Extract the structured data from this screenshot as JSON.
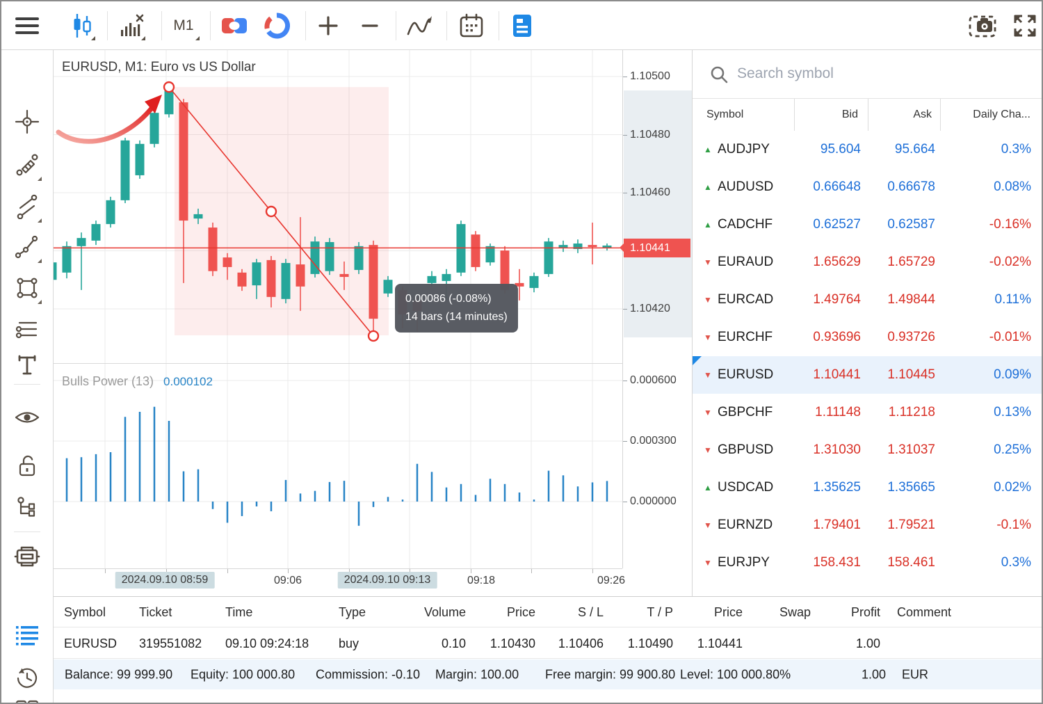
{
  "toolbar": {
    "timeframe_label": "M1",
    "icons": [
      "menu",
      "candlestick-chart",
      "bar-chart-close",
      "timeframe",
      "one-click-trading",
      "market-depth",
      "zoom-in",
      "zoom-out",
      "indicators",
      "calendar",
      "news",
      "screenshot",
      "fullscreen"
    ]
  },
  "sidebar": {
    "icons": [
      "crosshair",
      "measure",
      "trend-lines",
      "polyline",
      "shapes",
      "horizontal-lines",
      "text",
      "visibility",
      "unlock",
      "object-tree",
      "print",
      "trade-list",
      "history",
      "journal"
    ]
  },
  "chart": {
    "title": "EURUSD, M1: Euro vs US Dollar",
    "tooltip_line1": "0.00086 (-0.08%)",
    "tooltip_line2": "14 bars (14 minutes)",
    "price_tag": "1.10441",
    "indicator_name": "Bulls Power (13)",
    "indicator_value": "0.000102"
  },
  "chart_data": {
    "type": "candlestick",
    "symbol": "EURUSD",
    "timeframe": "M1",
    "title": "EURUSD, M1: Euro vs US Dollar",
    "current_price": 1.10441,
    "price_ticks": [
      {
        "label": "1.10500",
        "value": 1.105
      },
      {
        "label": "1.10480",
        "value": 1.1048
      },
      {
        "label": "1.10460",
        "value": 1.1046
      },
      {
        "label": "1.10420",
        "value": 1.1042
      }
    ],
    "indicator_name": "Bulls Power",
    "indicator_period": 13,
    "indicator_ticks": [
      {
        "label": "0.000600",
        "value": 0.0006
      },
      {
        "label": "0.000300",
        "value": 0.0003
      },
      {
        "label": "0.000000",
        "value": 0.0
      }
    ],
    "time_axis": [
      {
        "label": "2024.09.10 08:59",
        "highlighted": true
      },
      {
        "label": "09:06",
        "highlighted": false
      },
      {
        "label": "2024.09.10 09:13",
        "highlighted": true
      },
      {
        "label": "09:18",
        "highlighted": false
      },
      {
        "label": "09:26",
        "highlighted": false
      }
    ],
    "measure": {
      "from_bar": 8,
      "to_bar": 22,
      "price_change": 0.00086,
      "percent_change": -0.08,
      "bars": 14,
      "minutes": 14
    },
    "candles": [
      [
        1.1043,
        1.104372,
        1.104289,
        1.10436
      ],
      [
        1.104325,
        1.104432,
        1.104305,
        1.104416
      ],
      [
        1.104416,
        1.104463,
        1.104265,
        1.104444
      ],
      [
        1.104435,
        1.104504,
        1.10442,
        1.104492
      ],
      [
        1.104492,
        1.104586,
        1.10448,
        1.104574
      ],
      [
        1.104574,
        1.104789,
        1.104564,
        1.10478
      ],
      [
        1.10466,
        1.10478,
        1.104648,
        1.104768
      ],
      [
        1.104768,
        1.104887,
        1.104756,
        1.104875
      ],
      [
        1.10487,
        1.104959,
        1.104859,
        1.104952
      ],
      [
        1.104911,
        1.104923,
        1.104289,
        1.104504
      ],
      [
        1.104511,
        1.104545,
        1.104492,
        1.104526
      ],
      [
        1.10448,
        1.104497,
        1.104313,
        1.10433
      ],
      [
        1.104377,
        1.104392,
        1.1043,
        1.104344
      ],
      [
        1.104325,
        1.104337,
        1.104262,
        1.104277
      ],
      [
        1.104281,
        1.104372,
        1.104234,
        1.10436
      ],
      [
        1.104368,
        1.104382,
        1.104205,
        1.104241
      ],
      [
        1.104234,
        1.104372,
        1.104219,
        1.104358
      ],
      [
        1.104353,
        1.104516,
        1.104193,
        1.104277
      ],
      [
        1.10432,
        1.104449,
        1.104308,
        1.104432
      ],
      [
        1.10433,
        1.104444,
        1.104317,
        1.10443
      ],
      [
        1.10432,
        1.104363,
        1.104265,
        1.10431
      ],
      [
        1.104334,
        1.10443,
        1.10432,
        1.104416
      ],
      [
        1.10442,
        1.104435,
        1.104114,
        1.104166
      ],
      [
        1.104253,
        1.104313,
        1.104241,
        1.1043
      ],
      [
        1.104265,
        1.104277,
        1.104133,
        1.104181
      ],
      [
        1.104229,
        1.104241,
        1.104121,
        1.104193
      ],
      [
        1.104289,
        1.10433,
        1.104277,
        1.104313
      ],
      [
        1.104296,
        1.104337,
        1.104229,
        1.10432
      ],
      [
        1.104325,
        1.104504,
        1.104313,
        1.104492
      ],
      [
        1.104456,
        1.104468,
        1.10433,
        1.104344
      ],
      [
        1.10436,
        1.104425,
        1.104349,
        1.104416
      ],
      [
        1.104401,
        1.104416,
        1.104253,
        1.104265
      ],
      [
        1.104289,
        1.104337,
        1.104229,
        1.104277
      ],
      [
        1.104272,
        1.104325,
        1.104257,
        1.104313
      ],
      [
        1.10432,
        1.104444,
        1.10431,
        1.104432
      ],
      [
        1.104411,
        1.104435,
        1.104396,
        1.10442
      ],
      [
        1.104406,
        1.104439,
        1.104392,
        1.104425
      ],
      [
        1.10442,
        1.104497,
        1.104353,
        1.104413
      ],
      [
        1.104411,
        1.104425,
        1.104401,
        1.104418
      ]
    ],
    "bulls_power": [
      0.00023,
      0.000215,
      0.00022,
      0.000235,
      0.000245,
      0.00042,
      0.000445,
      0.00047,
      0.0004,
      0.00015,
      0.00016,
      -3.7e-05,
      -0.000105,
      -7.2e-05,
      -2.4e-05,
      -4.8e-05,
      0.000107,
      4e-05,
      5.3e-05,
      9.7e-05,
      0.000103,
      -0.00012,
      -2.7e-05,
      2.3e-05,
      1e-05,
      0.000187,
      0.000147,
      7e-05,
      8.7e-05,
      3.3e-05,
      0.000113,
      8.7e-05,
      4.5e-05,
      1e-05,
      0.000153,
      0.00013,
      7.5e-05,
      9.5e-05,
      0.000102
    ]
  },
  "market_watch": {
    "search_placeholder": "Search symbol",
    "columns": [
      "Symbol",
      "Bid",
      "Ask",
      "Daily Cha..."
    ],
    "rows": [
      {
        "dir": "up",
        "symbol": "AUDJPY",
        "bid": "95.604",
        "ask": "95.664",
        "change": "0.3%",
        "selected": false
      },
      {
        "dir": "up",
        "symbol": "AUDUSD",
        "bid": "0.66648",
        "ask": "0.66678",
        "change": "0.08%",
        "selected": false
      },
      {
        "dir": "up",
        "symbol": "CADCHF",
        "bid": "0.62527",
        "ask": "0.62587",
        "change": "-0.16%",
        "selected": false
      },
      {
        "dir": "down",
        "symbol": "EURAUD",
        "bid": "1.65629",
        "ask": "1.65729",
        "change": "-0.02%",
        "selected": false
      },
      {
        "dir": "down",
        "symbol": "EURCAD",
        "bid": "1.49764",
        "ask": "1.49844",
        "change": "0.11%",
        "selected": false
      },
      {
        "dir": "down",
        "symbol": "EURCHF",
        "bid": "0.93696",
        "ask": "0.93726",
        "change": "-0.01%",
        "selected": false
      },
      {
        "dir": "down",
        "symbol": "EURUSD",
        "bid": "1.10441",
        "ask": "1.10445",
        "change": "0.09%",
        "selected": true
      },
      {
        "dir": "down",
        "symbol": "GBPCHF",
        "bid": "1.11148",
        "ask": "1.11218",
        "change": "0.13%",
        "selected": false
      },
      {
        "dir": "down",
        "symbol": "GBPUSD",
        "bid": "1.31030",
        "ask": "1.31037",
        "change": "0.25%",
        "selected": false
      },
      {
        "dir": "up",
        "symbol": "USDCAD",
        "bid": "1.35625",
        "ask": "1.35665",
        "change": "0.02%",
        "selected": false
      },
      {
        "dir": "down",
        "symbol": "EURNZD",
        "bid": "1.79401",
        "ask": "1.79521",
        "change": "-0.1%",
        "selected": false
      },
      {
        "dir": "down",
        "symbol": "EURJPY",
        "bid": "158.431",
        "ask": "158.461",
        "change": "0.3%",
        "selected": false
      }
    ]
  },
  "positions": {
    "columns": [
      "Symbol",
      "Ticket",
      "Time",
      "Type",
      "Volume",
      "Price",
      "S / L",
      "T / P",
      "Price",
      "Swap",
      "Profit",
      "Comment"
    ],
    "rows": [
      [
        "EURUSD",
        "319551082",
        "09.10 09:24:18",
        "buy",
        "0.10",
        "1.10430",
        "1.10406",
        "1.10490",
        "1.10441",
        "",
        "1.00",
        ""
      ]
    ]
  },
  "account": {
    "summary": [
      "Balance: 99 999.90",
      "Equity: 100 000.80",
      "Commission: -0.10",
      "Margin: 100.00",
      "Free margin: 99 900.80",
      "Level: 100 000.80%"
    ],
    "profit": "1.00",
    "currency": "EUR"
  },
  "colors": {
    "bull": "#26a69a",
    "bear": "#ef5350",
    "annotation": "#e8352e",
    "accent_blue": "#1e88e5",
    "price_up_text": "#1d6fd8",
    "price_down_text": "#d93026",
    "indicator_bar": "#2683c6",
    "selected_row": "#e9f2fc",
    "price_tag_bg": "#ef5350"
  }
}
